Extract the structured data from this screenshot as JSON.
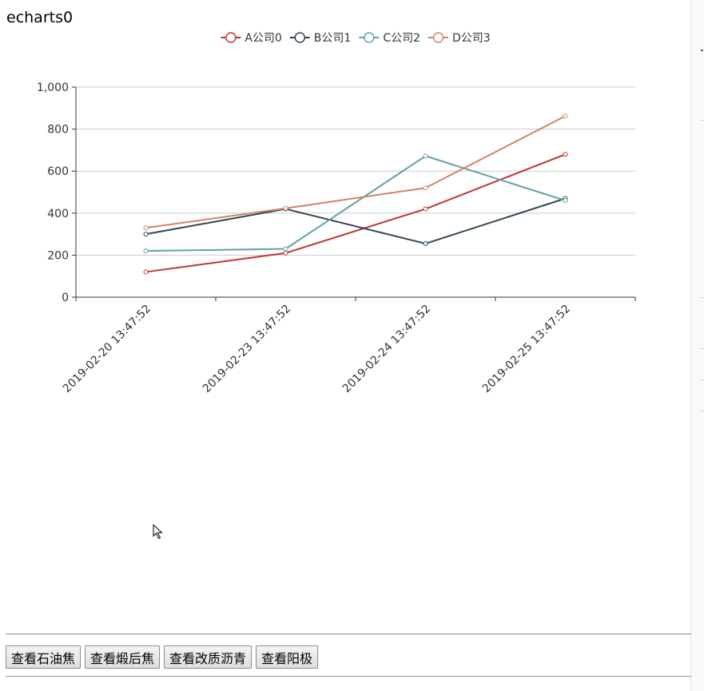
{
  "page": {
    "title": "echarts0"
  },
  "chart_data": {
    "type": "line",
    "categories": [
      "2019-02-20 13:47:52",
      "2019-02-23 13:47:52",
      "2019-02-24 13:47:52",
      "2019-02-25 13:47:52"
    ],
    "series": [
      {
        "name": "A公司0",
        "color": "#c23531",
        "values": [
          120,
          210,
          420,
          680
        ]
      },
      {
        "name": "B公司1",
        "color": "#2f4554",
        "values": [
          300,
          420,
          255,
          470
        ]
      },
      {
        "name": "C公司2",
        "color": "#61a0a8",
        "values": [
          220,
          230,
          672,
          460
        ]
      },
      {
        "name": "D公司3",
        "color": "#d48265",
        "values": [
          330,
          423,
          520,
          862
        ]
      }
    ],
    "ylim": [
      0,
      1000
    ],
    "yticks": [
      0,
      200,
      400,
      600,
      800,
      1000
    ],
    "ytick_labels": [
      "0",
      "200",
      "400",
      "600",
      "800",
      "1,000"
    ],
    "grid": true,
    "legend_position": "top-center"
  },
  "buttons": [
    {
      "id": "petroleum-coke",
      "label": "查看石油焦"
    },
    {
      "id": "calcined-coke",
      "label": "查看煅后焦"
    },
    {
      "id": "modified-pitch",
      "label": "查看改质沥青"
    },
    {
      "id": "anode",
      "label": "查看阳极"
    }
  ]
}
